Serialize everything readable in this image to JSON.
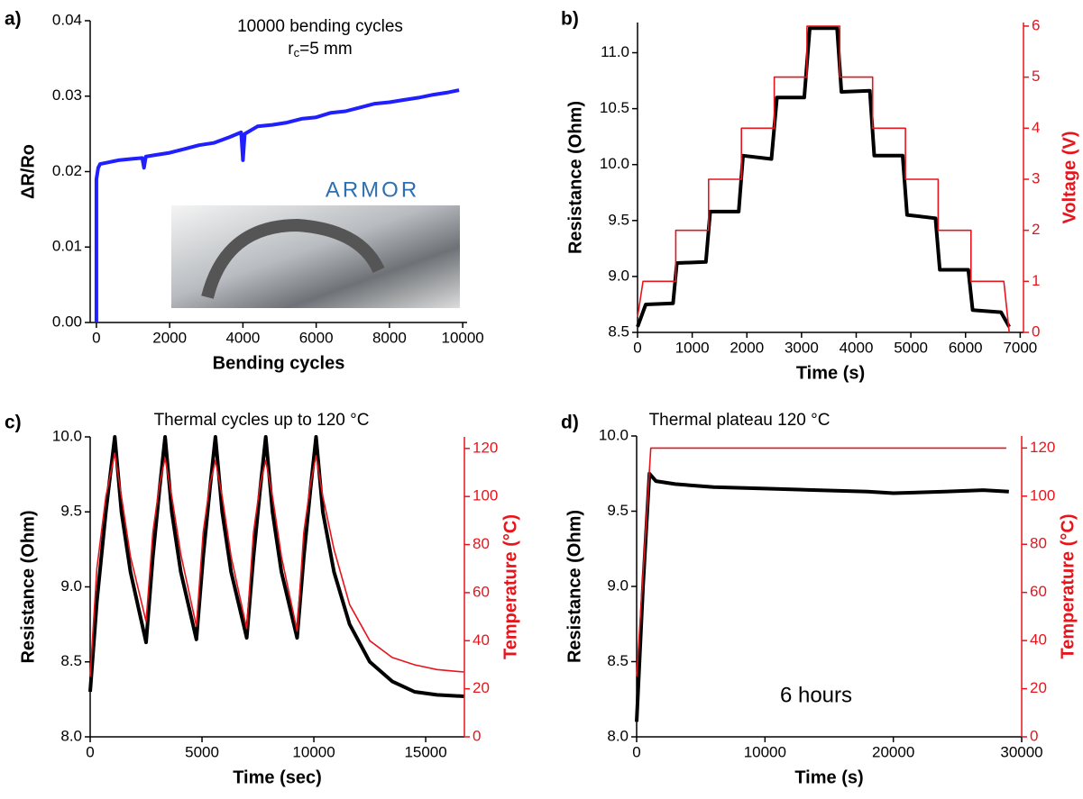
{
  "chart_data": [
    {
      "type": "line",
      "panel_label": "a)",
      "title": "10000 bending cycles",
      "subtitle_parts": [
        "r",
        "c",
        "=5 mm"
      ],
      "logo_text": "ARMOR",
      "xlabel": "Bending cycles",
      "ylabel": "ΔR/Ro",
      "xlim": [
        -170,
        10120
      ],
      "xticks": [
        0,
        2000,
        4000,
        6000,
        8000,
        10000
      ],
      "ylim": [
        0,
        0.04
      ],
      "yticks": [
        {
          "value": 0,
          "label": "0.00"
        },
        {
          "value": 0.01,
          "label": "0.01"
        },
        {
          "value": 0.02,
          "label": "0.02"
        },
        {
          "value": 0.03,
          "label": "0.03"
        },
        {
          "value": 0.04,
          "label": "0.04"
        }
      ],
      "series": [
        {
          "color": "#1f1fff",
          "x": [
            0,
            0,
            0,
            0,
            0,
            0,
            0,
            50,
            100,
            300,
            600,
            1000,
            1250,
            1300,
            1350,
            1600,
            2000,
            2400,
            2800,
            3200,
            3600,
            3950,
            4000,
            4050,
            4400,
            4800,
            5200,
            5600,
            6000,
            6400,
            6800,
            7200,
            7600,
            8000,
            8400,
            8800,
            9200,
            9600,
            9900
          ],
          "values": [
            0.0,
            0.006,
            0.0095,
            0.012,
            0.0145,
            0.017,
            0.019,
            0.0205,
            0.021,
            0.0212,
            0.0215,
            0.0217,
            0.0218,
            0.0205,
            0.022,
            0.0222,
            0.0225,
            0.023,
            0.0235,
            0.0238,
            0.0245,
            0.0252,
            0.0215,
            0.025,
            0.026,
            0.0262,
            0.0265,
            0.027,
            0.0272,
            0.0278,
            0.028,
            0.0285,
            0.029,
            0.0292,
            0.0295,
            0.0298,
            0.0302,
            0.0305,
            0.0308
          ]
        }
      ]
    },
    {
      "type": "line",
      "panel_label": "b)",
      "xlabel": "Time (s)",
      "ylabel": "Resistance (Ohm)",
      "y2label": "Voltage (V)",
      "y2color": "#e8141b",
      "xlim": [
        0,
        7060
      ],
      "xticks": [
        0,
        1000,
        2000,
        3000,
        4000,
        5000,
        6000,
        7000
      ],
      "ylim": [
        8.5,
        11.27
      ],
      "yticks": [
        8.5,
        {
          "value": 9,
          "label": "9.0"
        },
        9.5,
        {
          "value": 10,
          "label": "10.0"
        },
        10.5,
        {
          "value": 11,
          "label": "11.0"
        }
      ],
      "y2lim": [
        0,
        6.07
      ],
      "y2ticks": [
        0,
        1,
        2,
        3,
        4,
        5,
        6
      ],
      "series": [
        {
          "color": "#000000",
          "x": [
            0,
            150,
            650,
            720,
            1250,
            1330,
            1850,
            1930,
            2450,
            2550,
            3050,
            3150,
            3650,
            3730,
            4250,
            4330,
            4850,
            4930,
            5450,
            5530,
            6050,
            6130,
            6650,
            6800
          ],
          "values": [
            8.55,
            8.75,
            8.76,
            9.12,
            9.13,
            9.58,
            9.58,
            10.08,
            10.05,
            10.6,
            10.6,
            11.22,
            11.22,
            10.65,
            10.66,
            10.08,
            10.08,
            9.55,
            9.52,
            9.06,
            9.06,
            8.7,
            8.68,
            8.55
          ]
        },
        {
          "color": "#e8141b",
          "axis": "y2",
          "x": [
            0,
            100,
            700,
            700,
            1300,
            1300,
            1900,
            1900,
            2500,
            2500,
            3100,
            3100,
            3700,
            3700,
            4300,
            4300,
            4900,
            4900,
            5500,
            5500,
            6100,
            6100,
            6700,
            6800
          ],
          "values": [
            0.3,
            1,
            1,
            2,
            2,
            3,
            3,
            4,
            4,
            5,
            5,
            6,
            6,
            5,
            5,
            4,
            4,
            3,
            3,
            2,
            2,
            1,
            1,
            0
          ]
        }
      ]
    },
    {
      "type": "line",
      "panel_label": "c)",
      "title": "Thermal cycles up to 120 °C",
      "xlabel": "Time (sec)",
      "ylabel": "Resistance (Ohm)",
      "y2label": "Temperature (°C)",
      "y2color": "#e8141b",
      "xlim": [
        0,
        16730
      ],
      "xticks": [
        0,
        5000,
        10000,
        15000
      ],
      "ylim": [
        8,
        10
      ],
      "yticks": [
        {
          "value": 8,
          "label": "8.0"
        },
        8.5,
        {
          "value": 9,
          "label": "9.0"
        },
        9.5,
        {
          "value": 10,
          "label": "10.0"
        }
      ],
      "y2lim": [
        0,
        124.8
      ],
      "y2ticks": [
        0,
        20,
        40,
        60,
        80,
        100,
        120
      ],
      "series": [
        {
          "color": "#000000",
          "x": [
            0,
            300,
            700,
            1100,
            1400,
            1800,
            2500,
            2800,
            3100,
            3350,
            3650,
            4050,
            4750,
            5050,
            5350,
            5600,
            5900,
            6300,
            7000,
            7300,
            7600,
            7850,
            8150,
            8550,
            9250,
            9550,
            9850,
            10100,
            10400,
            10900,
            11600,
            12500,
            13500,
            14500,
            15500,
            16700
          ],
          "values": [
            8.3,
            8.9,
            9.5,
            10.0,
            9.5,
            9.1,
            8.63,
            9.2,
            9.65,
            10.0,
            9.5,
            9.1,
            8.65,
            9.2,
            9.65,
            10.0,
            9.5,
            9.1,
            8.66,
            9.2,
            9.65,
            10.0,
            9.5,
            9.1,
            8.66,
            9.2,
            9.65,
            10.0,
            9.5,
            9.1,
            8.75,
            8.5,
            8.37,
            8.3,
            8.28,
            8.27
          ]
        },
        {
          "color": "#e8141b",
          "axis": "y2",
          "x": [
            0,
            300,
            700,
            1100,
            1400,
            1800,
            2500,
            2800,
            3100,
            3350,
            3650,
            4050,
            4750,
            5050,
            5350,
            5600,
            5900,
            6300,
            7000,
            7300,
            7600,
            7850,
            8150,
            8550,
            9250,
            9550,
            9850,
            10100,
            10400,
            10900,
            11600,
            12500,
            13500,
            14500,
            15500,
            16700
          ],
          "values": [
            25,
            70,
            100,
            118,
            100,
            75,
            48,
            85,
            105,
            116,
            100,
            76,
            46,
            85,
            105,
            115,
            100,
            75,
            45,
            85,
            105,
            115,
            100,
            75,
            44,
            85,
            105,
            117,
            100,
            78,
            55,
            40,
            33,
            30,
            28,
            27
          ]
        }
      ]
    },
    {
      "type": "line",
      "panel_label": "d)",
      "title": "Thermal plateau 120 °C",
      "annotation": "6 hours",
      "xlabel": "Time (s)",
      "ylabel": "Resistance (Ohm)",
      "y2label": "Temperature (°C)",
      "y2color": "#e8141b",
      "xlim": [
        0,
        30000
      ],
      "xticks": [
        0,
        10000,
        20000,
        30000
      ],
      "ylim": [
        8,
        10
      ],
      "yticks": [
        {
          "value": 8,
          "label": "8.0"
        },
        8.5,
        {
          "value": 9,
          "label": "9.0"
        },
        9.5,
        {
          "value": 10,
          "label": "10.0"
        }
      ],
      "y2lim": [
        0,
        125
      ],
      "y2ticks": [
        0,
        20,
        40,
        60,
        80,
        100,
        120
      ],
      "series": [
        {
          "color": "#000000",
          "x": [
            0,
            500,
            1000,
            1500,
            3000,
            6000,
            10000,
            14000,
            18000,
            20000,
            24000,
            27000,
            29000
          ],
          "values": [
            8.1,
            9.0,
            9.75,
            9.7,
            9.68,
            9.66,
            9.65,
            9.64,
            9.63,
            9.62,
            9.63,
            9.64,
            9.63
          ]
        },
        {
          "color": "#e8141b",
          "axis": "y2",
          "x": [
            0,
            1100,
            28800
          ],
          "values": [
            25,
            120,
            120
          ]
        }
      ]
    }
  ]
}
